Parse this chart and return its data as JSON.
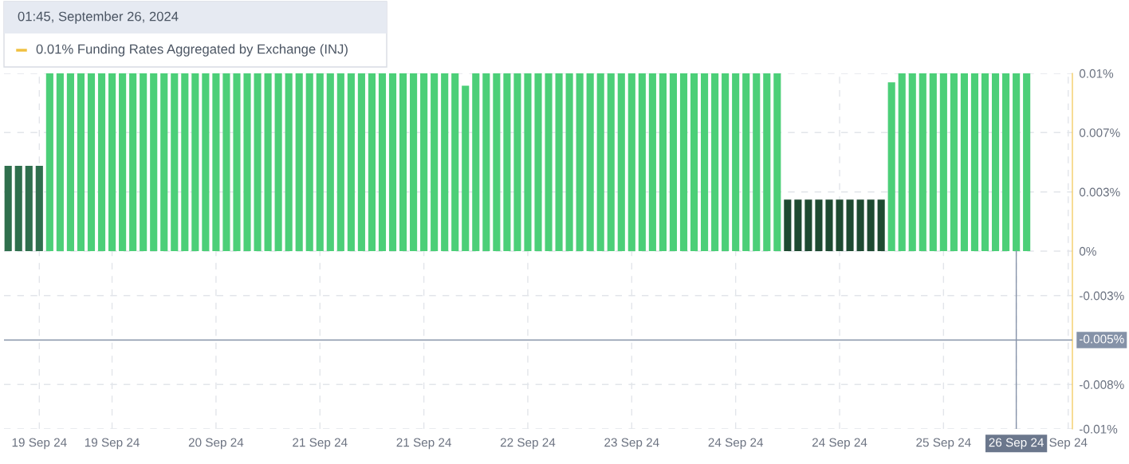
{
  "chart_data": {
    "type": "bar",
    "annotations": [
      "01:45, September 26, 2024",
      "0.01% Funding Rates Aggregated by Exchange (INJ)"
    ],
    "categories": [
      null,
      null,
      null,
      "19 Sep 24",
      null,
      null,
      null,
      null,
      null,
      null,
      "19 Sep 24",
      null,
      null,
      null,
      null,
      null,
      null,
      null,
      null,
      null,
      "20 Sep 24",
      null,
      null,
      null,
      null,
      null,
      null,
      null,
      null,
      null,
      "21 Sep 24",
      null,
      null,
      null,
      null,
      null,
      null,
      null,
      null,
      null,
      "21 Sep 24",
      null,
      null,
      null,
      null,
      null,
      null,
      null,
      null,
      null,
      "22 Sep 24",
      null,
      null,
      null,
      null,
      null,
      null,
      null,
      null,
      null,
      "23 Sep 24",
      null,
      null,
      null,
      null,
      null,
      null,
      null,
      null,
      null,
      "24 Sep 24",
      null,
      null,
      null,
      null,
      null,
      null,
      null,
      null,
      null,
      "24 Sep 24",
      null,
      null,
      null,
      null,
      null,
      null,
      null,
      null,
      null,
      "25 Sep 24",
      null,
      null,
      null,
      null,
      null,
      null,
      "26 Sep 24",
      null,
      null,
      null,
      null,
      "Sep 24"
    ],
    "values": [
      0.0048,
      0.0048,
      0.0048,
      0.0048,
      0.01,
      0.01,
      0.01,
      0.01,
      0.01,
      0.01,
      0.01,
      0.01,
      0.01,
      0.01,
      0.01,
      0.01,
      0.01,
      0.01,
      0.01,
      0.01,
      0.01,
      0.01,
      0.01,
      0.01,
      0.01,
      0.01,
      0.01,
      0.01,
      0.01,
      0.01,
      0.01,
      0.01,
      0.01,
      0.01,
      0.01,
      0.01,
      0.01,
      0.01,
      0.01,
      0.01,
      0.01,
      0.01,
      0.01,
      0.01,
      0.0093,
      0.01,
      0.01,
      0.01,
      0.01,
      0.01,
      0.01,
      0.01,
      0.01,
      0.01,
      0.01,
      0.01,
      0.01,
      0.01,
      0.01,
      0.01,
      0.01,
      0.01,
      0.01,
      0.01,
      0.01,
      0.01,
      0.01,
      0.01,
      0.01,
      0.01,
      0.01,
      0.01,
      0.01,
      0.01,
      0.01,
      0.0029,
      0.0029,
      0.0029,
      0.0029,
      0.0029,
      0.0029,
      0.0029,
      0.0029,
      0.0029,
      0.0029,
      0.0095,
      0.01,
      0.01,
      0.01,
      0.01,
      0.01,
      0.01,
      0.01,
      0.01,
      0.01,
      0.01,
      0.01,
      0.01,
      0.01,
      null,
      null,
      null,
      null
    ],
    "colors": [
      "#2f6f4d",
      "#2f6f4d",
      "#2f6f4d",
      "#2f6f4d",
      "#4ccf78",
      "#4ccf78",
      "#4ccf78",
      "#4ccf78",
      "#4ccf78",
      "#4ccf78",
      "#4ccf78",
      "#4ccf78",
      "#4ccf78",
      "#4ccf78",
      "#4ccf78",
      "#4ccf78",
      "#4ccf78",
      "#4ccf78",
      "#4ccf78",
      "#4ccf78",
      "#4ccf78",
      "#4ccf78",
      "#4ccf78",
      "#4ccf78",
      "#4ccf78",
      "#4ccf78",
      "#4ccf78",
      "#4ccf78",
      "#4ccf78",
      "#4ccf78",
      "#4ccf78",
      "#4ccf78",
      "#4ccf78",
      "#4ccf78",
      "#4ccf78",
      "#4ccf78",
      "#4ccf78",
      "#4ccf78",
      "#4ccf78",
      "#4ccf78",
      "#4ccf78",
      "#4ccf78",
      "#4ccf78",
      "#4ccf78",
      "#4ccf78",
      "#4ccf78",
      "#4ccf78",
      "#4ccf78",
      "#4ccf78",
      "#4ccf78",
      "#4ccf78",
      "#4ccf78",
      "#4ccf78",
      "#4ccf78",
      "#4ccf78",
      "#4ccf78",
      "#4ccf78",
      "#4ccf78",
      "#4ccf78",
      "#4ccf78",
      "#4ccf78",
      "#4ccf78",
      "#4ccf78",
      "#4ccf78",
      "#4ccf78",
      "#4ccf78",
      "#4ccf78",
      "#4ccf78",
      "#4ccf78",
      "#4ccf78",
      "#4ccf78",
      "#4ccf78",
      "#4ccf78",
      "#4ccf78",
      "#4ccf78",
      "#1e4a31",
      "#1e4a31",
      "#1e4a31",
      "#1e4a31",
      "#1e4a31",
      "#1e4a31",
      "#1e4a31",
      "#1e4a31",
      "#1e4a31",
      "#1e4a31",
      "#4ccf78",
      "#4ccf78",
      "#4ccf78",
      "#4ccf78",
      "#4ccf78",
      "#4ccf78",
      "#4ccf78",
      "#4ccf78",
      "#4ccf78",
      "#4ccf78",
      "#4ccf78",
      "#4ccf78",
      "#4ccf78",
      "#4ccf78",
      "#4ccf78",
      "#4ccf78",
      "#4ccf78",
      "#4ccf78"
    ],
    "ylim": [
      -0.01,
      0.01
    ],
    "yticks": [
      {
        "value": 0.01,
        "label": "0.01%"
      },
      {
        "value": 0.00667,
        "label": "0.007%"
      },
      {
        "value": 0.00333,
        "label": "0.003%"
      },
      {
        "value": 0,
        "label": "0%"
      },
      {
        "value": -0.0025,
        "label": "-0.003%"
      },
      {
        "value": -0.0075,
        "label": "-0.008%"
      },
      {
        "value": -0.01,
        "label": "-0.01%"
      }
    ],
    "ref_lines": [
      {
        "axis": "y",
        "value": -0.005,
        "label": "-0.005%",
        "color": "#8592a8"
      },
      {
        "axis": "x",
        "value": "26 Sep 24",
        "color": "#8592a8"
      }
    ],
    "grid": true,
    "legend": false
  }
}
